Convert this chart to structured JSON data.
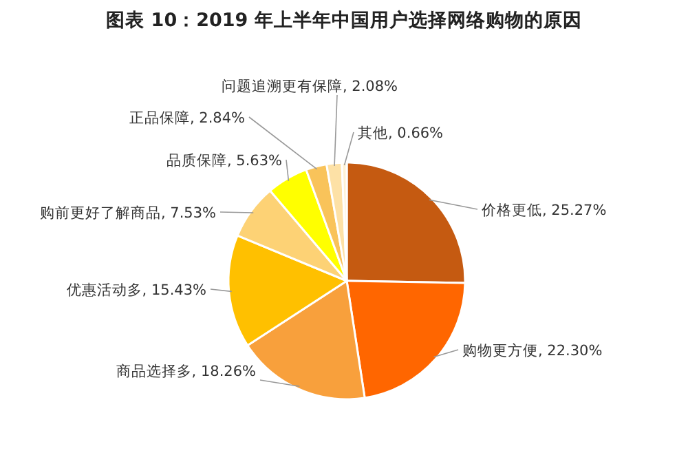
{
  "chart_data": {
    "type": "pie",
    "title": "图表 10：2019 年上半年中国用户选择网络购物的原因",
    "categories": [
      "价格更低",
      "购物更方便",
      "商品选择多",
      "优惠活动多",
      "购前更好了解商品",
      "品质保障",
      "正品保障",
      "问题追溯更有保障",
      "其他"
    ],
    "value_labels": [
      "25.27%",
      "22.30%",
      "18.26%",
      "15.43%",
      "7.53%",
      "5.63%",
      "2.84%",
      "2.08%",
      "0.66%"
    ],
    "values": [
      25.27,
      22.3,
      18.26,
      15.43,
      7.53,
      5.63,
      2.84,
      2.08,
      0.66
    ],
    "colors": [
      "#c55a11",
      "#ff6600",
      "#f8a03c",
      "#ffc000",
      "#fdd275",
      "#ffff00",
      "#f9c35a",
      "#fde1a6",
      "#fff2d4"
    ]
  }
}
